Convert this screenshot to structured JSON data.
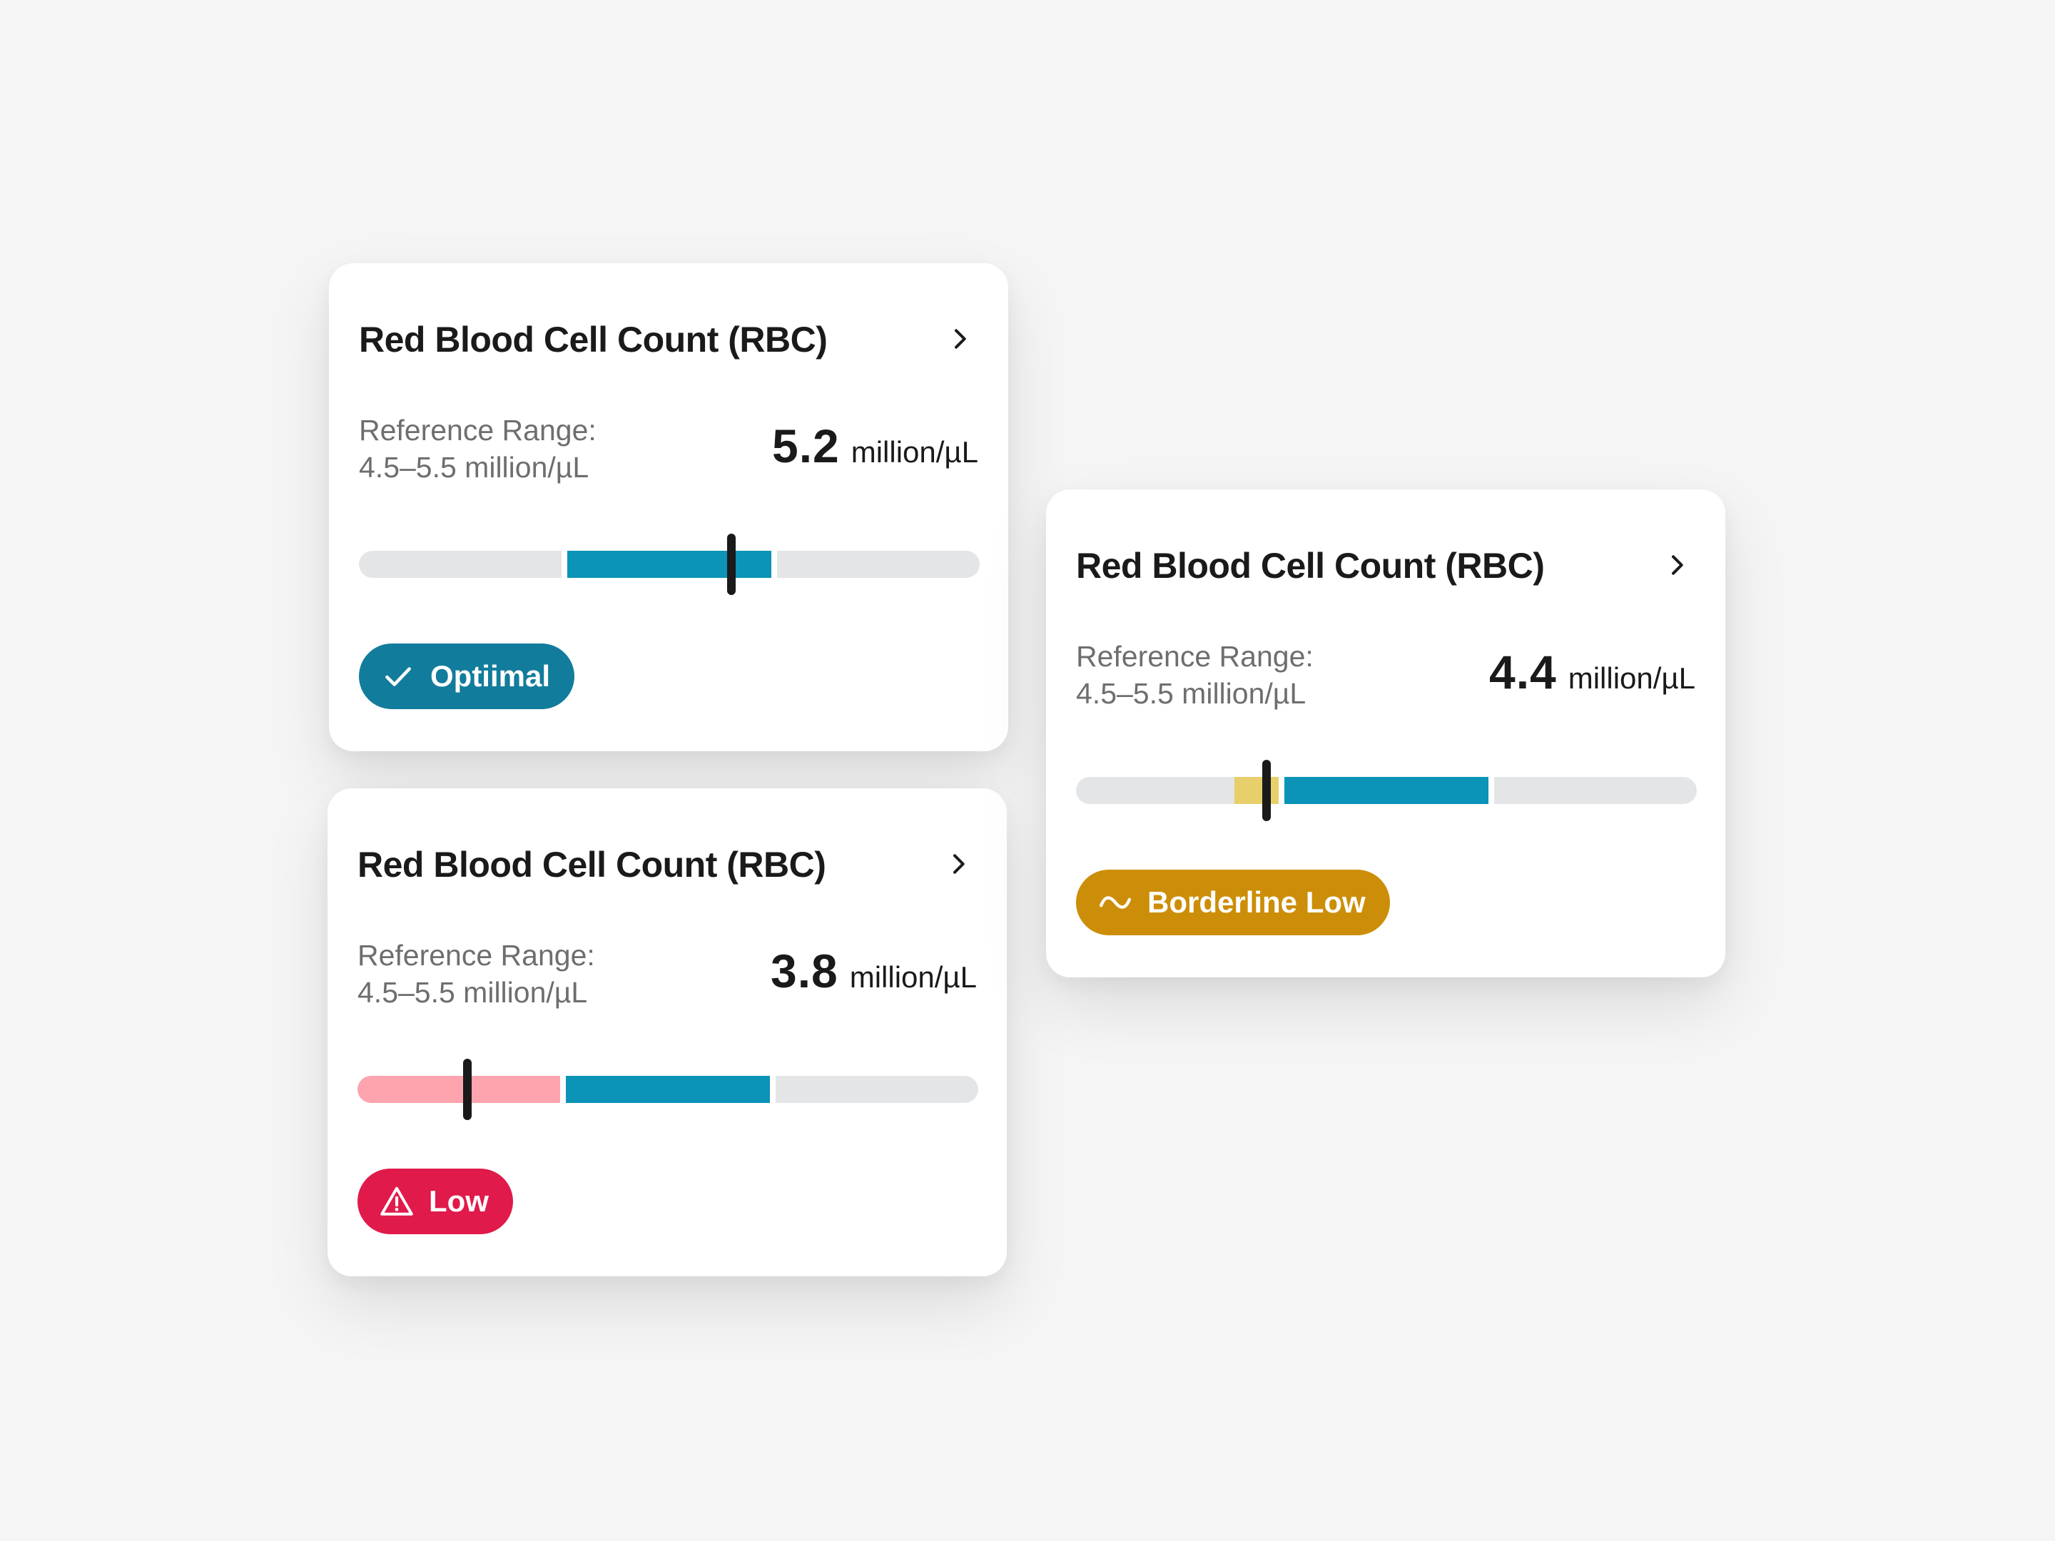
{
  "cards": [
    {
      "id": "optimal",
      "title": "Red Blood Cell Count (RBC)",
      "reference_label": "Reference Range:",
      "reference_range": "4.5–5.5 million/µL",
      "value": "5.2",
      "unit": "million/µL",
      "status": "Optiimal",
      "status_icon": "check-icon",
      "status_color": "#127c9c",
      "marker_fraction": 0.6,
      "zone_colors": {
        "low": "#e4e5e7",
        "normal": "#0b93b8",
        "high": "#e4e5e7"
      }
    },
    {
      "id": "low",
      "title": "Red Blood Cell Count (RBC)",
      "reference_label": "Reference Range:",
      "reference_range": "4.5–5.5 million/µL",
      "value": "3.8",
      "unit": "million/µL",
      "status": "Low",
      "status_icon": "warning-icon",
      "status_color": "#e01a4a",
      "marker_fraction": 0.177,
      "zone_colors": {
        "low": "#fda4ae",
        "normal": "#0b93b8",
        "high": "#e4e5e7"
      }
    },
    {
      "id": "borderline",
      "title": "Red Blood Cell Count (RBC)",
      "reference_label": "Reference Range:",
      "reference_range": "4.5–5.5 million/µL",
      "value": "4.4",
      "unit": "million/µL",
      "status": "Borderline Low",
      "status_icon": "wave-icon",
      "status_color": "#cc8e08",
      "marker_fraction": 0.307,
      "zone_colors": {
        "low": "#e4e5e7",
        "normal": "#0b93b8",
        "high": "#e4e5e7",
        "borderline": "#e7cf6b"
      }
    }
  ]
}
